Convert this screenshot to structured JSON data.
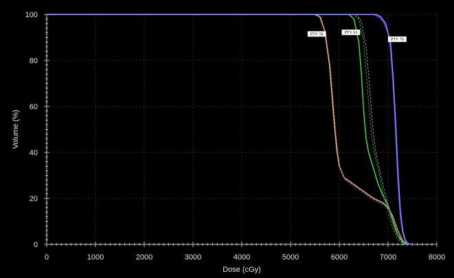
{
  "chart_data": {
    "type": "line",
    "title": "",
    "xlabel": "Dose (cGy)",
    "ylabel": "Volume (%)",
    "xlim": [
      0,
      8000
    ],
    "ylim": [
      0,
      100
    ],
    "x_ticks": [
      "0",
      "1000",
      "2000",
      "3000",
      "4000",
      "5000",
      "6000",
      "7000",
      "8000"
    ],
    "y_ticks": [
      "0",
      "20",
      "40",
      "60",
      "80",
      "100"
    ],
    "x_tick_values": [
      0,
      1000,
      2000,
      3000,
      4000,
      5000,
      6000,
      7000,
      8000
    ],
    "y_tick_values": [
      0,
      20,
      40,
      60,
      80,
      100
    ],
    "grid": true,
    "annotations": [
      {
        "text": "PTV 58",
        "x": 5350,
        "y": 91.5
      },
      {
        "text": "PTV 63",
        "x": 6050,
        "y": 92.2
      },
      {
        "text": "PTV 70",
        "x": 7000,
        "y": 89.2
      }
    ],
    "series": [
      {
        "color": "#e8b48a",
        "dashed": false,
        "x": [
          0,
          5500,
          5600,
          5700,
          5800,
          5900,
          5950,
          6000,
          6100,
          6300,
          6500,
          6700,
          6900,
          7000,
          7100,
          7200,
          7300,
          7400,
          7500
        ],
        "y": [
          100,
          100,
          99,
          93,
          78,
          52,
          41,
          34,
          29,
          26,
          23,
          20,
          18,
          16,
          12,
          6,
          1.5,
          0.2,
          0
        ]
      },
      {
        "color": "#9a6a4c",
        "dashed": true,
        "x": [
          0,
          5520,
          5620,
          5720,
          5820,
          5920,
          5970,
          6020,
          6120,
          6320,
          6520,
          6720,
          6920,
          7020,
          7120,
          7220,
          7320,
          7420,
          7500
        ],
        "y": [
          100,
          100,
          99,
          92,
          77,
          51,
          40,
          33,
          28,
          25,
          22,
          19,
          17,
          15,
          11,
          5,
          1.2,
          0.1,
          0
        ]
      },
      {
        "color": "#3fcf3f",
        "dashed": false,
        "x": [
          0,
          6200,
          6300,
          6400,
          6450,
          6500,
          6550,
          6600,
          6700,
          6800,
          6900,
          7000,
          7100,
          7200,
          7300,
          7400,
          7500
        ],
        "y": [
          100,
          100,
          98,
          88,
          75,
          58,
          46,
          40,
          33,
          26,
          21,
          17,
          10,
          4,
          1,
          0.2,
          0
        ]
      },
      {
        "color": "#2fa84f",
        "dashed": true,
        "x": [
          0,
          6300,
          6400,
          6500,
          6550,
          6600,
          6650,
          6700,
          6800,
          6900,
          7000,
          7100,
          7200,
          7300,
          7400
        ],
        "y": [
          100,
          100,
          98,
          88,
          76,
          62,
          50,
          42,
          32,
          22,
          14,
          7,
          2,
          0.5,
          0
        ]
      },
      {
        "color": "#9a9a9a",
        "dashed": true,
        "x": [
          0,
          6350,
          6450,
          6550,
          6600,
          6650,
          6700,
          6750,
          6850,
          6950,
          7050,
          7150,
          7250,
          7350,
          7450
        ],
        "y": [
          100,
          100,
          97,
          86,
          74,
          60,
          48,
          40,
          30,
          21,
          13,
          6,
          1.8,
          0.4,
          0
        ]
      },
      {
        "color": "#3b3bd8",
        "dashed": false,
        "x": [
          0,
          6700,
          6800,
          6900,
          7000,
          7050,
          7100,
          7150,
          7200,
          7250,
          7300,
          7350,
          7400,
          7450,
          7500
        ],
        "y": [
          100,
          100,
          99,
          97,
          92,
          85,
          70,
          50,
          28,
          12,
          5,
          1.5,
          0.4,
          0.1,
          0
        ]
      },
      {
        "color": "#8888ff",
        "dashed": false,
        "x": [
          0,
          6750,
          6850,
          6950,
          7050,
          7100,
          7150,
          7200,
          7250,
          7300,
          7350,
          7400,
          7450,
          7500
        ],
        "y": [
          100,
          100,
          99,
          96,
          88,
          74,
          55,
          33,
          15,
          6,
          2,
          0.5,
          0.1,
          0
        ]
      }
    ]
  }
}
